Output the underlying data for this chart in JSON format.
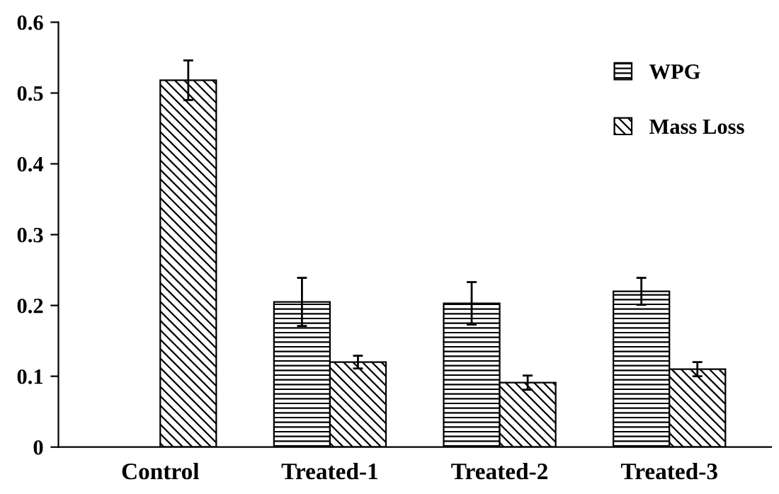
{
  "chart_data": {
    "type": "bar",
    "categories": [
      "Control",
      "Treated-1",
      "Treated-2",
      "Treated-3"
    ],
    "series": [
      {
        "name": "WPG",
        "color": "#000000",
        "values": [
          null,
          0.205,
          0.203,
          0.22
        ],
        "errors": [
          null,
          0.034,
          0.03,
          0.019
        ]
      },
      {
        "name": "Mass Loss",
        "color": "#000000",
        "values": [
          0.518,
          0.12,
          0.091,
          0.11
        ],
        "errors": [
          0.028,
          0.009,
          0.01,
          0.01
        ]
      }
    ],
    "ylim": [
      0,
      0.6
    ],
    "yticks": [
      0,
      0.1,
      0.2,
      0.3,
      0.4,
      0.5,
      0.6
    ],
    "grid": false,
    "legend": "top right"
  }
}
